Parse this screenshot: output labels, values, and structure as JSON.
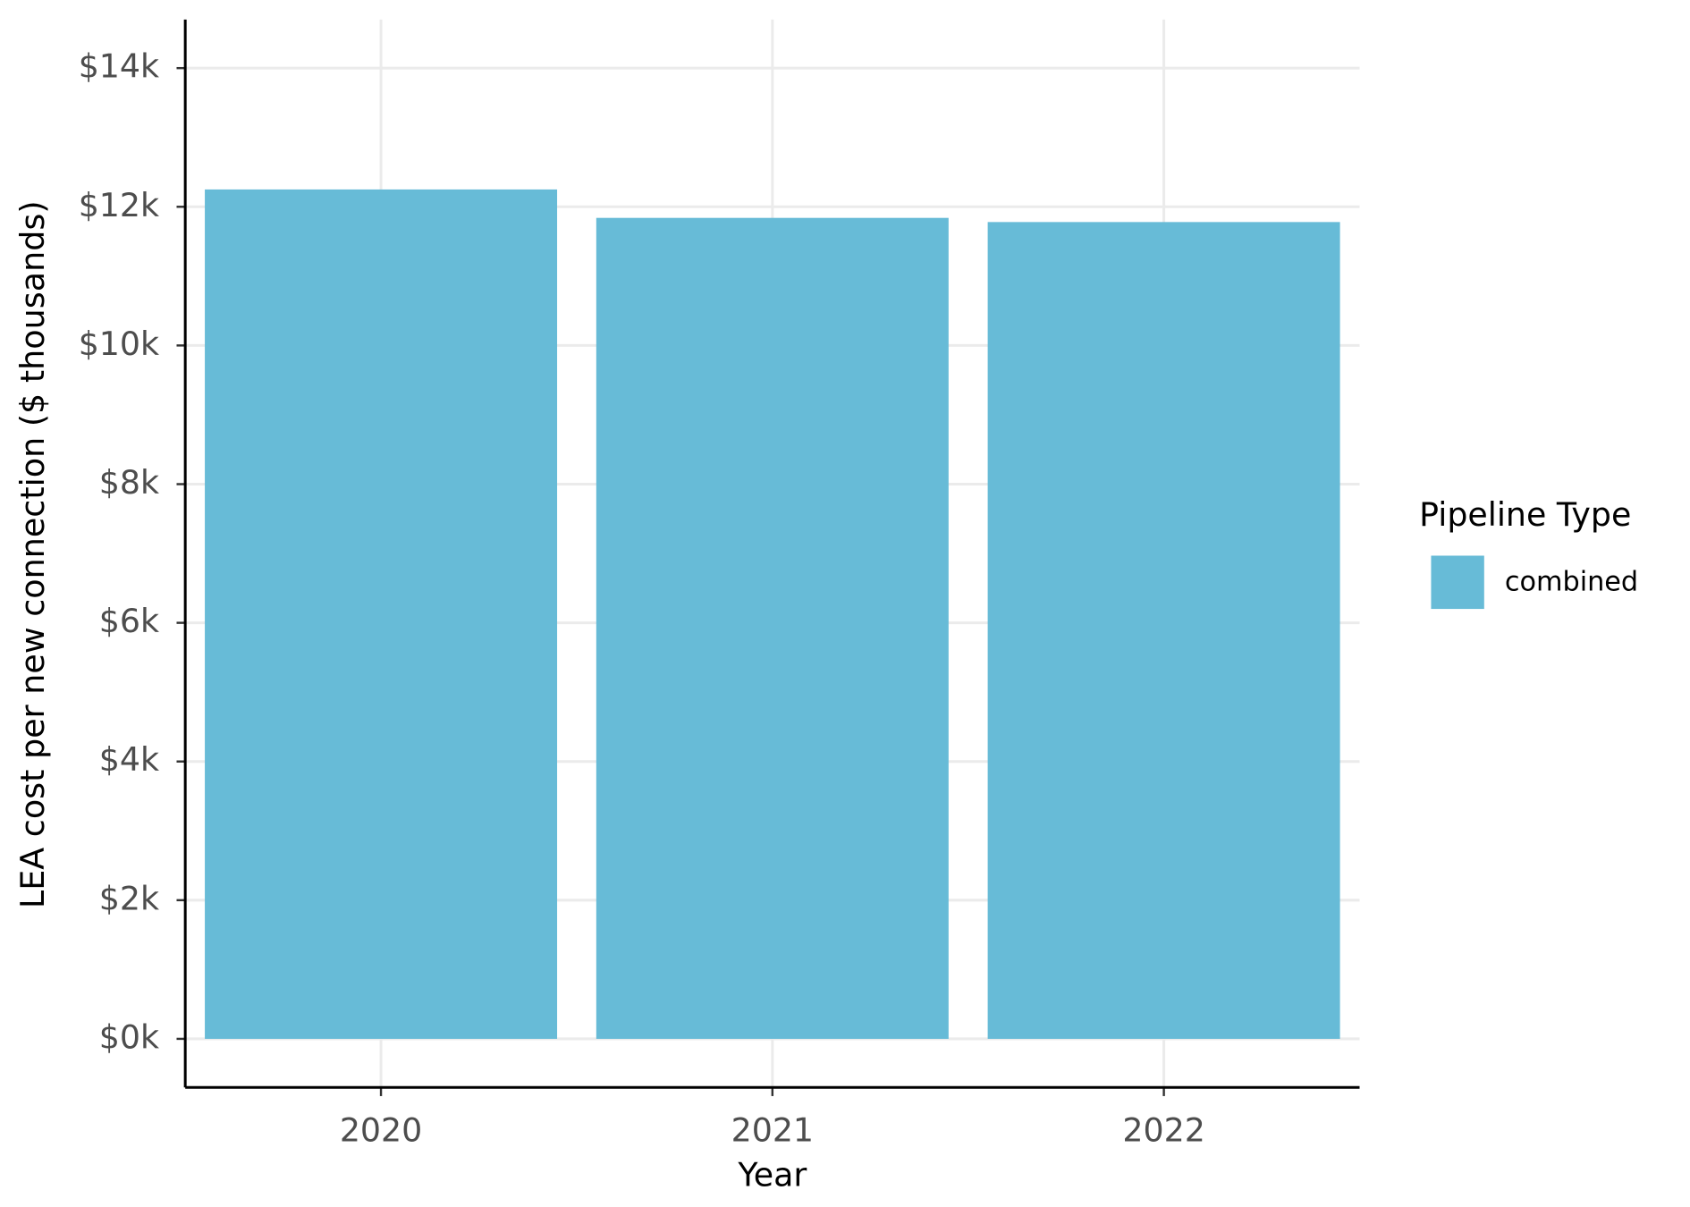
{
  "chart_data": {
    "type": "bar",
    "x_label": "Year",
    "y_label": "LEA cost per new connection ($ thousands)",
    "legend_title": "Pipeline Type",
    "categories": [
      "2020",
      "2021",
      "2022"
    ],
    "series": [
      {
        "name": "combined",
        "color": "#67bbd7",
        "values": [
          12250,
          11840,
          11780
        ]
      }
    ],
    "ylim": [
      -700,
      14700
    ],
    "yticks": [
      {
        "value": 0,
        "label": "$0k"
      },
      {
        "value": 2000,
        "label": "$2k"
      },
      {
        "value": 4000,
        "label": "$4k"
      },
      {
        "value": 6000,
        "label": "$6k"
      },
      {
        "value": 8000,
        "label": "$8k"
      },
      {
        "value": 10000,
        "label": "$10k"
      },
      {
        "value": 12000,
        "label": "$12k"
      },
      {
        "value": 14000,
        "label": "$14k"
      }
    ],
    "grid": true,
    "legend": "right"
  }
}
